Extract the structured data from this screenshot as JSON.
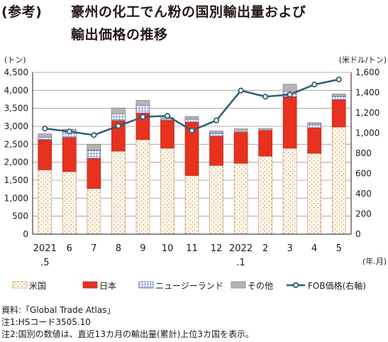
{
  "header": {
    "label": "(参考)",
    "title_line1": "豪州の化工でん粉の国別輸出量および",
    "title_line2": "輸出価格の推移"
  },
  "chart_data": {
    "type": "bar",
    "stacked": true,
    "categories": [
      {
        "top": "2021",
        "bottom": ".5"
      },
      {
        "top": "6",
        "bottom": ""
      },
      {
        "top": "7",
        "bottom": ""
      },
      {
        "top": "8",
        "bottom": ""
      },
      {
        "top": "9",
        "bottom": ""
      },
      {
        "top": "10",
        "bottom": ""
      },
      {
        "top": "11",
        "bottom": ""
      },
      {
        "top": "12",
        "bottom": ""
      },
      {
        "top": "2022",
        "bottom": ".1"
      },
      {
        "top": "2",
        "bottom": ""
      },
      {
        "top": "3",
        "bottom": ""
      },
      {
        "top": "4",
        "bottom": ""
      },
      {
        "top": "5",
        "bottom": ""
      }
    ],
    "series": [
      {
        "name": "米国",
        "pattern": "dots",
        "color": "#f3d9b5",
        "values": [
          1790,
          1740,
          1270,
          2310,
          2630,
          2390,
          1630,
          1910,
          1970,
          2170,
          2390,
          2250,
          2980
        ]
      },
      {
        "name": "日本",
        "pattern": "solid",
        "color": "#e8311f",
        "values": [
          830,
          950,
          840,
          850,
          740,
          780,
          1490,
          820,
          870,
          720,
          1430,
          710,
          760
        ]
      },
      {
        "name": "ニュージーランド",
        "pattern": "grid",
        "color": "#3c55a5",
        "values": [
          70,
          140,
          230,
          190,
          210,
          0,
          80,
          80,
          0,
          0,
          150,
          100,
          100
        ]
      },
      {
        "name": "その他",
        "pattern": "solid",
        "color": "#b4b4b4",
        "values": [
          100,
          90,
          160,
          160,
          140,
          70,
          70,
          60,
          90,
          50,
          200,
          40,
          60
        ]
      }
    ],
    "line": {
      "name": "FOB価格(右軸)",
      "color": "#2e5f76",
      "values": [
        1045,
        1015,
        980,
        1070,
        1160,
        1170,
        1025,
        1125,
        1420,
        1360,
        1380,
        1480,
        1530
      ]
    },
    "y_left": {
      "unit": "(トン)",
      "min": 0,
      "max": 4500,
      "step": 500,
      "ticks": [
        "0",
        "500",
        "1,000",
        "1,500",
        "2,000",
        "2,500",
        "3,000",
        "3,500",
        "4,000",
        "4,500"
      ]
    },
    "y_right": {
      "unit": "(米ドル/トン)",
      "min": 0,
      "max": 1600,
      "step": 200,
      "ticks": [
        "0",
        "200",
        "400",
        "600",
        "800",
        "1,000",
        "1,200",
        "1,400",
        "1,600"
      ]
    },
    "x_unit": "(年.月)",
    "grid": true,
    "legend_position": "bottom"
  },
  "notes": [
    "資料:「Global Trade Atlas」",
    "注1:HSコード3505.10",
    "注2:国別の数値は、直近13カ月の輸出量(累計)上位3カ国を表示。"
  ]
}
